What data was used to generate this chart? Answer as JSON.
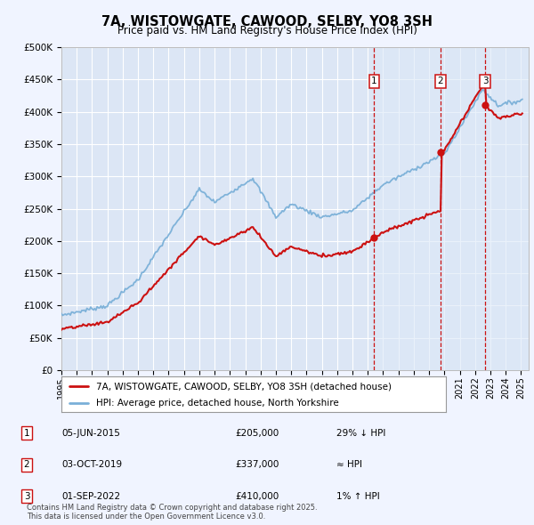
{
  "title": "7A, WISTOWGATE, CAWOOD, SELBY, YO8 3SH",
  "subtitle": "Price paid vs. HM Land Registry's House Price Index (HPI)",
  "background_color": "#f0f4ff",
  "plot_bg_color": "#dce6f5",
  "grid_color": "#ffffff",
  "highlight_bg": "#dce8f8",
  "ylim": [
    0,
    500000
  ],
  "yticks": [
    0,
    50000,
    100000,
    150000,
    200000,
    250000,
    300000,
    350000,
    400000,
    450000,
    500000
  ],
  "ytick_labels": [
    "£0",
    "£50K",
    "£100K",
    "£150K",
    "£200K",
    "£250K",
    "£300K",
    "£350K",
    "£400K",
    "£450K",
    "£500K"
  ],
  "xmin": 1995.0,
  "xmax": 2025.5,
  "hpi_color": "#7ab0d8",
  "price_color": "#cc1111",
  "vline_color": "#cc1111",
  "transactions": [
    {
      "num": 1,
      "date_str": "05-JUN-2015",
      "year": 2015.42,
      "price": 205000,
      "note": "29% ↓ HPI"
    },
    {
      "num": 2,
      "date_str": "03-OCT-2019",
      "year": 2019.75,
      "price": 337000,
      "note": "≈ HPI"
    },
    {
      "num": 3,
      "date_str": "01-SEP-2022",
      "year": 2022.67,
      "price": 410000,
      "note": "1% ↑ HPI"
    }
  ],
  "legend_label_price": "7A, WISTOWGATE, CAWOOD, SELBY, YO8 3SH (detached house)",
  "legend_label_hpi": "HPI: Average price, detached house, North Yorkshire",
  "footer": "Contains HM Land Registry data © Crown copyright and database right 2025.\nThis data is licensed under the Open Government Licence v3.0."
}
